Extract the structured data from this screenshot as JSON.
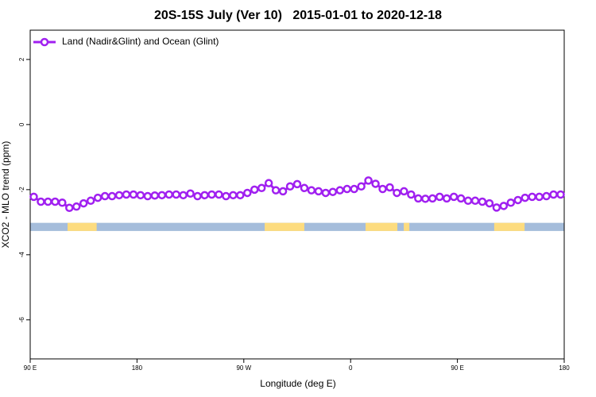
{
  "chart_data": {
    "type": "line",
    "title": "20S-15S July (Ver 10)   2015-01-01 to 2020-12-18",
    "xlabel": "Longitude (deg E)",
    "ylabel": "XCO2 - MLO trend (ppm)",
    "xlim": [
      90,
      540
    ],
    "ylim": [
      -7.2,
      2.9
    ],
    "xticks": [
      {
        "value": 90,
        "label": "90 E"
      },
      {
        "value": 180,
        "label": "180"
      },
      {
        "value": 270,
        "label": "90 W"
      },
      {
        "value": 360,
        "label": "0"
      },
      {
        "value": 450,
        "label": "90 E"
      },
      {
        "value": 540,
        "label": "180"
      }
    ],
    "yticks": [
      2,
      0,
      -2,
      -4,
      -6
    ],
    "legend": "top-left",
    "series": [
      {
        "name": "Land (Nadir&Glint) and Ocean (Glint)",
        "color": "#a020f0",
        "x": [
          93,
          99,
          105,
          111,
          117,
          123,
          129,
          135,
          141,
          147,
          153,
          159,
          165,
          171,
          177,
          183,
          189,
          195,
          201,
          207,
          213,
          219,
          225,
          231,
          237,
          243,
          249,
          255,
          261,
          267,
          273,
          279,
          285,
          291,
          297,
          303,
          309,
          315,
          321,
          327,
          333,
          339,
          345,
          351,
          357,
          363,
          369,
          375,
          381,
          387,
          393,
          399,
          405,
          411,
          417,
          423,
          429,
          435,
          441,
          447,
          453,
          459,
          465,
          471,
          477,
          483,
          489,
          495,
          501,
          507,
          513,
          519,
          525,
          531,
          537
        ],
        "values": [
          -2.22,
          -2.37,
          -2.37,
          -2.37,
          -2.4,
          -2.56,
          -2.52,
          -2.42,
          -2.34,
          -2.25,
          -2.2,
          -2.2,
          -2.17,
          -2.15,
          -2.15,
          -2.17,
          -2.2,
          -2.18,
          -2.17,
          -2.15,
          -2.15,
          -2.17,
          -2.12,
          -2.2,
          -2.17,
          -2.15,
          -2.15,
          -2.2,
          -2.17,
          -2.17,
          -2.1,
          -2.0,
          -1.95,
          -1.8,
          -2.02,
          -2.05,
          -1.9,
          -1.83,
          -1.95,
          -2.02,
          -2.05,
          -2.1,
          -2.07,
          -2.02,
          -1.98,
          -1.98,
          -1.9,
          -1.72,
          -1.82,
          -1.98,
          -1.93,
          -2.1,
          -2.05,
          -2.15,
          -2.27,
          -2.28,
          -2.27,
          -2.22,
          -2.27,
          -2.22,
          -2.27,
          -2.34,
          -2.34,
          -2.37,
          -2.42,
          -2.55,
          -2.5,
          -2.4,
          -2.32,
          -2.25,
          -2.22,
          -2.22,
          -2.2,
          -2.15,
          -2.15
        ]
      }
    ],
    "surface_strip": {
      "y": [
        -3.27,
        -3.02
      ],
      "ocean_color": "#a5bddb",
      "land_color": "#fddc7f",
      "land_segments": [
        [
          121.5,
          146
        ],
        [
          287.6,
          321
        ],
        [
          372.6,
          399.4
        ],
        [
          404.8,
          409.5
        ],
        [
          481,
          506.6
        ]
      ]
    }
  }
}
